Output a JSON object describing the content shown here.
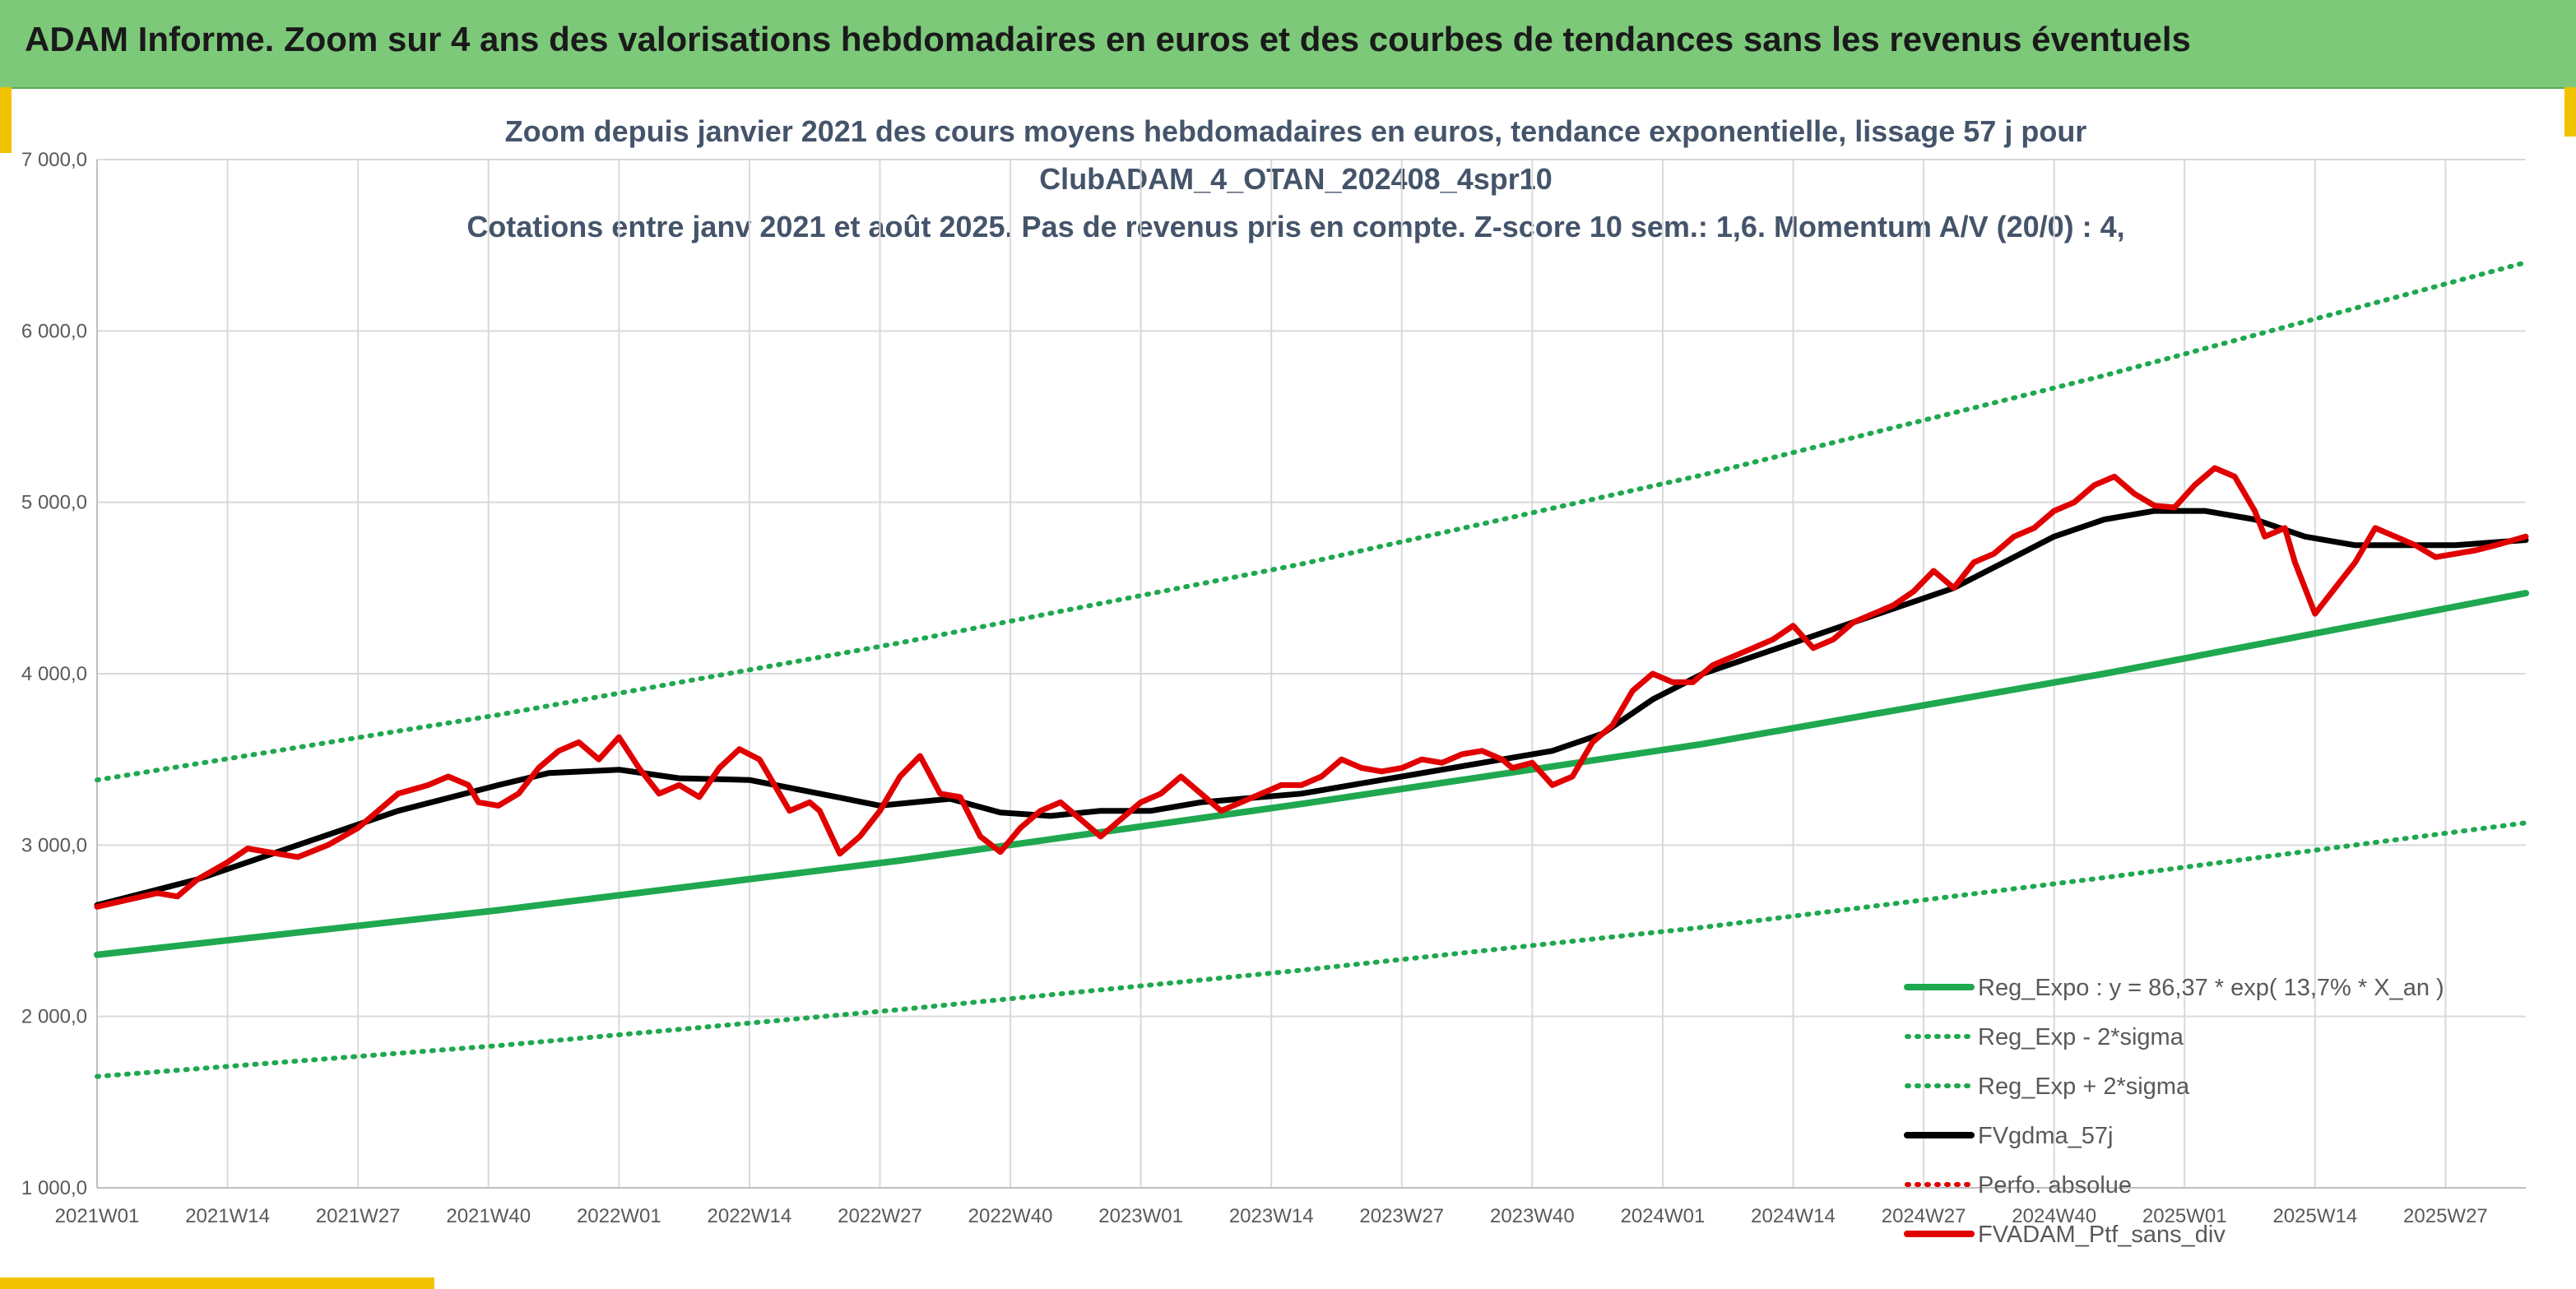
{
  "header": {
    "title": "ADAM Informe. Zoom sur 4 ans des valorisations hebdomadaires en euros et des courbes de tendances sans les revenus éventuels"
  },
  "chart_data": {
    "type": "line",
    "title_lines": [
      "Zoom depuis janvier 2021 des cours moyens hebdomadaires en euros, tendance exponentielle, lissage 57 j pour",
      "ClubADAM_4_OTAN_202408_4spr10",
      "Cotations entre janv 2021 et août 2025. Pas de revenus pris en compte. Z-score 10 sem.: 1,6. Momentum A/V (20/0) : 4,"
    ],
    "y_ticks": [
      "1 000,0",
      "2 000,0",
      "3 000,0",
      "4 000,0",
      "5 000,0",
      "6 000,0",
      "7 000,0"
    ],
    "ylim": [
      1000,
      7000
    ],
    "x_ticks": [
      {
        "label": "2021W01",
        "week": 0
      },
      {
        "label": "2021W14",
        "week": 13
      },
      {
        "label": "2021W27",
        "week": 26
      },
      {
        "label": "2021W40",
        "week": 39
      },
      {
        "label": "2022W01",
        "week": 52
      },
      {
        "label": "2022W14",
        "week": 65
      },
      {
        "label": "2022W27",
        "week": 78
      },
      {
        "label": "2022W40",
        "week": 91
      },
      {
        "label": "2023W01",
        "week": 104
      },
      {
        "label": "2023W14",
        "week": 117
      },
      {
        "label": "2023W27",
        "week": 130
      },
      {
        "label": "2023W40",
        "week": 143
      },
      {
        "label": "2024W01",
        "week": 156
      },
      {
        "label": "2024W14",
        "week": 169
      },
      {
        "label": "2024W27",
        "week": 182
      },
      {
        "label": "2024W40",
        "week": 195
      },
      {
        "label": "2025W01",
        "week": 208
      },
      {
        "label": "2025W14",
        "week": 221
      },
      {
        "label": "2025W27",
        "week": 234
      }
    ],
    "xlim_weeks": [
      0,
      242
    ],
    "grid": true,
    "legend_position": "bottom-right",
    "colors": {
      "reg_expo": "#1fa84f",
      "sigma_bands": "#1fa84f",
      "smooth": "#000000",
      "perf_abs": "#e00000",
      "fvadam": "#e00000",
      "banner": "#7dc97a",
      "title_text": "#44546a"
    },
    "series": [
      {
        "name": "Reg_Expo : y = 86,37 * exp( 13,7% *  X_an )",
        "style": "solid",
        "color": "#1fa84f",
        "points": [
          [
            0,
            2360
          ],
          [
            40,
            2620
          ],
          [
            80,
            2910
          ],
          [
            120,
            3240
          ],
          [
            160,
            3590
          ],
          [
            200,
            4000
          ],
          [
            242,
            4470
          ]
        ]
      },
      {
        "name": "Reg_Exp - 2*sigma",
        "style": "dotted",
        "color": "#1fa84f",
        "points": [
          [
            0,
            1650
          ],
          [
            40,
            1830
          ],
          [
            80,
            2040
          ],
          [
            120,
            2270
          ],
          [
            160,
            2520
          ],
          [
            200,
            2810
          ],
          [
            242,
            3130
          ]
        ]
      },
      {
        "name": "Reg_Exp + 2*sigma",
        "style": "dotted",
        "color": "#1fa84f",
        "points": [
          [
            0,
            3380
          ],
          [
            40,
            3760
          ],
          [
            80,
            4180
          ],
          [
            120,
            4640
          ],
          [
            160,
            5160
          ],
          [
            200,
            5740
          ],
          [
            242,
            6400
          ]
        ]
      },
      {
        "name": "FVgdma_57j",
        "style": "solid",
        "color": "#000000",
        "points": [
          [
            0,
            2650
          ],
          [
            10,
            2800
          ],
          [
            20,
            3000
          ],
          [
            30,
            3200
          ],
          [
            40,
            3350
          ],
          [
            45,
            3420
          ],
          [
            52,
            3440
          ],
          [
            58,
            3390
          ],
          [
            65,
            3380
          ],
          [
            72,
            3300
          ],
          [
            78,
            3230
          ],
          [
            85,
            3270
          ],
          [
            90,
            3190
          ],
          [
            95,
            3170
          ],
          [
            100,
            3200
          ],
          [
            105,
            3200
          ],
          [
            110,
            3250
          ],
          [
            120,
            3300
          ],
          [
            130,
            3400
          ],
          [
            140,
            3500
          ],
          [
            145,
            3550
          ],
          [
            150,
            3650
          ],
          [
            155,
            3850
          ],
          [
            160,
            4000
          ],
          [
            165,
            4100
          ],
          [
            170,
            4200
          ],
          [
            175,
            4300
          ],
          [
            180,
            4400
          ],
          [
            185,
            4500
          ],
          [
            190,
            4650
          ],
          [
            195,
            4800
          ],
          [
            200,
            4900
          ],
          [
            205,
            4950
          ],
          [
            210,
            4950
          ],
          [
            215,
            4900
          ],
          [
            220,
            4800
          ],
          [
            225,
            4750
          ],
          [
            235,
            4750
          ],
          [
            242,
            4780
          ]
        ]
      },
      {
        "name": "Perfo. absolue",
        "style": "dotted",
        "color": "#e00000",
        "points": []
      },
      {
        "name": "FVADAM_Ptf_sans_div",
        "style": "solid",
        "color": "#e00000",
        "points": [
          [
            0,
            2640
          ],
          [
            3,
            2680
          ],
          [
            6,
            2720
          ],
          [
            8,
            2700
          ],
          [
            10,
            2800
          ],
          [
            13,
            2900
          ],
          [
            15,
            2980
          ],
          [
            18,
            2950
          ],
          [
            20,
            2930
          ],
          [
            23,
            3000
          ],
          [
            26,
            3100
          ],
          [
            28,
            3200
          ],
          [
            30,
            3300
          ],
          [
            33,
            3350
          ],
          [
            35,
            3400
          ],
          [
            37,
            3350
          ],
          [
            38,
            3250
          ],
          [
            40,
            3230
          ],
          [
            42,
            3300
          ],
          [
            44,
            3450
          ],
          [
            46,
            3550
          ],
          [
            48,
            3600
          ],
          [
            50,
            3500
          ],
          [
            52,
            3630
          ],
          [
            54,
            3450
          ],
          [
            56,
            3300
          ],
          [
            58,
            3350
          ],
          [
            60,
            3280
          ],
          [
            62,
            3450
          ],
          [
            64,
            3560
          ],
          [
            66,
            3500
          ],
          [
            67,
            3400
          ],
          [
            69,
            3200
          ],
          [
            71,
            3250
          ],
          [
            72,
            3200
          ],
          [
            74,
            2950
          ],
          [
            76,
            3050
          ],
          [
            78,
            3200
          ],
          [
            80,
            3400
          ],
          [
            82,
            3520
          ],
          [
            84,
            3300
          ],
          [
            86,
            3280
          ],
          [
            88,
            3050
          ],
          [
            90,
            2960
          ],
          [
            92,
            3100
          ],
          [
            94,
            3200
          ],
          [
            96,
            3250
          ],
          [
            98,
            3150
          ],
          [
            100,
            3050
          ],
          [
            102,
            3150
          ],
          [
            104,
            3250
          ],
          [
            106,
            3300
          ],
          [
            108,
            3400
          ],
          [
            110,
            3300
          ],
          [
            112,
            3200
          ],
          [
            114,
            3250
          ],
          [
            116,
            3300
          ],
          [
            118,
            3350
          ],
          [
            120,
            3350
          ],
          [
            122,
            3400
          ],
          [
            124,
            3500
          ],
          [
            126,
            3450
          ],
          [
            128,
            3430
          ],
          [
            130,
            3450
          ],
          [
            132,
            3500
          ],
          [
            134,
            3480
          ],
          [
            136,
            3530
          ],
          [
            138,
            3550
          ],
          [
            140,
            3500
          ],
          [
            141,
            3450
          ],
          [
            143,
            3480
          ],
          [
            145,
            3350
          ],
          [
            147,
            3400
          ],
          [
            149,
            3600
          ],
          [
            151,
            3700
          ],
          [
            153,
            3900
          ],
          [
            155,
            4000
          ],
          [
            157,
            3950
          ],
          [
            159,
            3950
          ],
          [
            161,
            4050
          ],
          [
            163,
            4100
          ],
          [
            165,
            4150
          ],
          [
            167,
            4200
          ],
          [
            169,
            4280
          ],
          [
            171,
            4150
          ],
          [
            173,
            4200
          ],
          [
            175,
            4300
          ],
          [
            177,
            4350
          ],
          [
            179,
            4400
          ],
          [
            181,
            4480
          ],
          [
            183,
            4600
          ],
          [
            185,
            4500
          ],
          [
            187,
            4650
          ],
          [
            189,
            4700
          ],
          [
            191,
            4800
          ],
          [
            193,
            4850
          ],
          [
            195,
            4950
          ],
          [
            197,
            5000
          ],
          [
            199,
            5100
          ],
          [
            201,
            5150
          ],
          [
            203,
            5050
          ],
          [
            205,
            4980
          ],
          [
            207,
            4970
          ],
          [
            209,
            5100
          ],
          [
            211,
            5200
          ],
          [
            213,
            5150
          ],
          [
            215,
            4950
          ],
          [
            216,
            4800
          ],
          [
            218,
            4850
          ],
          [
            219,
            4650
          ],
          [
            221,
            4350
          ],
          [
            223,
            4500
          ],
          [
            225,
            4650
          ],
          [
            227,
            4850
          ],
          [
            229,
            4800
          ],
          [
            231,
            4750
          ],
          [
            233,
            4680
          ],
          [
            235,
            4700
          ],
          [
            237,
            4720
          ],
          [
            239,
            4750
          ],
          [
            242,
            4800
          ]
        ]
      }
    ]
  }
}
